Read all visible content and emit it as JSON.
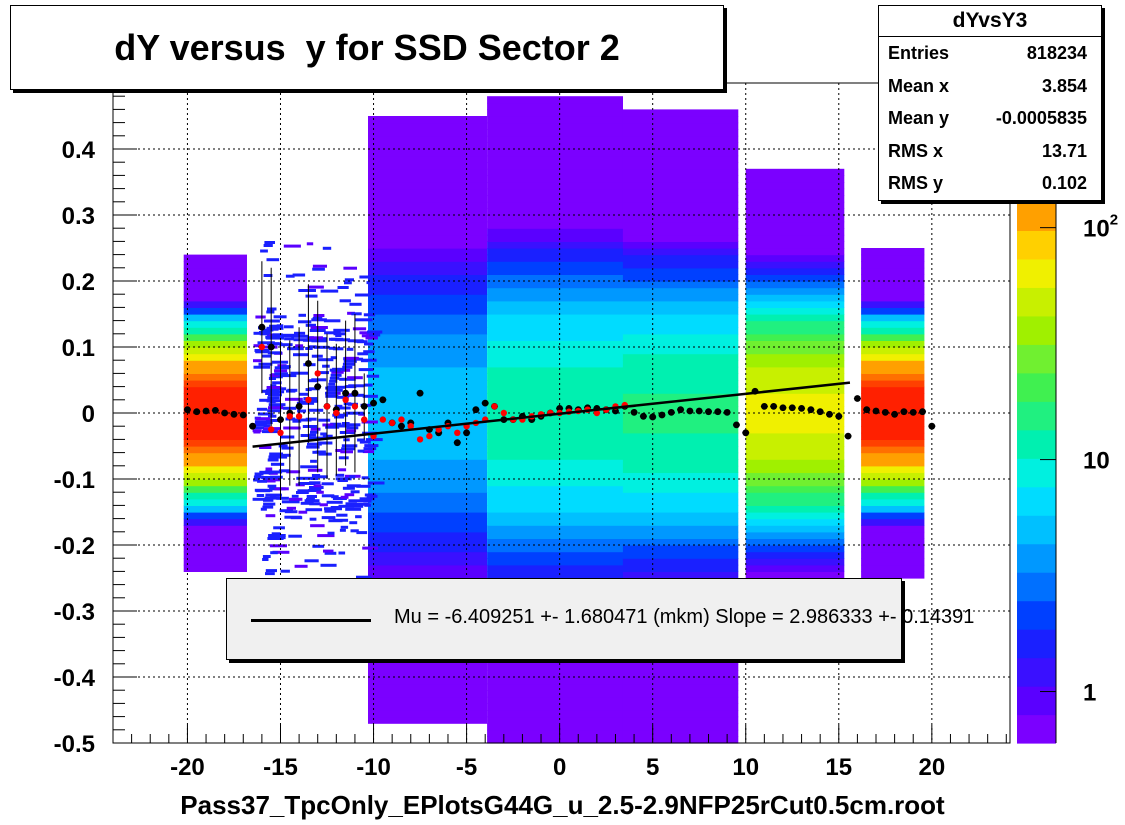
{
  "title": "dY versus  y for SSD Sector 2",
  "stats": {
    "name": "dYvsY3",
    "rows": [
      {
        "label": "Entries",
        "value": "818234"
      },
      {
        "label": "Mean x",
        "value": "3.854"
      },
      {
        "label": "Mean y",
        "value": "-0.0005835"
      },
      {
        "label": "RMS x",
        "value": "13.71"
      },
      {
        "label": "RMS y",
        "value": "0.102"
      }
    ]
  },
  "legend": {
    "text": "Mu = -6.409251 +- 1.680471 (mkm) Slope = 2.986333 +- 0.14391"
  },
  "colors": {
    "fit_line": "#000000",
    "mean_points": "#000000",
    "fit_points": "#ff0000",
    "frame": "#000000"
  },
  "chart_data": {
    "type": "heatmap",
    "title": "dY versus  y for SSD Sector 2",
    "xlabel": "Pass37_TpcOnly_EPlotsG44G_u_2.5-2.9NFP25rCut0.5cm.root",
    "ylabel": "",
    "xlim": [
      -24,
      24.2
    ],
    "ylim": [
      -0.5,
      0.5
    ],
    "x_ticks": [
      -20,
      -15,
      -10,
      -5,
      0,
      5,
      10,
      15,
      20
    ],
    "x_tick_labels": [
      "-20",
      "-15",
      "-10",
      "-5",
      "0",
      "5",
      "10",
      "15",
      "20"
    ],
    "y_ticks": [
      -0.5,
      -0.4,
      -0.3,
      -0.2,
      -0.1,
      0,
      0.1,
      0.2,
      0.3,
      0.4
    ],
    "y_tick_labels": [
      "-0.5",
      "-0.4",
      "-0.3",
      "-0.2",
      "-0.1",
      "0",
      "0.1",
      "0.2",
      "0.3",
      "0.4"
    ],
    "grid": true,
    "z_scale": "log",
    "z_range": [
      0.6,
      400
    ],
    "colorbar_ticks": [
      {
        "value": 1,
        "label": "1"
      },
      {
        "value": 10,
        "label": "10"
      },
      {
        "value": 100,
        "label": "10",
        "sup": "2"
      }
    ],
    "density_bands": [
      {
        "x0": -20.2,
        "x1": -16.8,
        "y0": -0.24,
        "y1": 0.24,
        "peak": 300,
        "sigma": 0.05
      },
      {
        "x0": -10.3,
        "x1": -3.9,
        "y0": -0.47,
        "y1": 0.45,
        "peak": 5,
        "sigma": 0.13
      },
      {
        "x0": -3.9,
        "x1": 3.4,
        "y0": -0.5,
        "y1": 0.48,
        "peak": 12,
        "sigma": 0.12
      },
      {
        "x0": 3.4,
        "x1": 9.6,
        "y0": -0.5,
        "y1": 0.46,
        "peak": 14,
        "sigma": 0.11
      },
      {
        "x0": 10.0,
        "x1": 15.3,
        "y0": -0.36,
        "y1": 0.37,
        "peak": 60,
        "sigma": 0.08
      },
      {
        "x0": 16.2,
        "x1": 19.6,
        "y0": -0.25,
        "y1": 0.25,
        "peak": 300,
        "sigma": 0.05
      }
    ],
    "sparse_region": {
      "x0": -16.5,
      "x1": -10.3,
      "y0": -0.43,
      "y1": 0.37
    },
    "series": [
      {
        "kind": "profile_mean",
        "x": [
          -20.0,
          -19.5,
          -19.0,
          -18.5,
          -18.0,
          -17.5,
          -17.0,
          -16.5,
          -16.0,
          -15.5,
          -15.0,
          -14.5,
          -14.0,
          -13.5,
          -13.0,
          -12.5,
          -12.0,
          -11.5,
          -11.0,
          -10.5,
          -10.0,
          -9.5,
          -9.0,
          -8.5,
          -8.0,
          -7.5,
          -7.0,
          -6.5,
          -6.0,
          -5.5,
          -5.0,
          -4.5,
          -4.0,
          -3.5,
          -3.0,
          -2.5,
          -2.0,
          -1.5,
          -1.0,
          -0.5,
          0.0,
          0.5,
          1.0,
          1.5,
          2.0,
          2.5,
          3.0,
          3.5,
          4.0,
          4.5,
          5.0,
          5.5,
          6.0,
          6.5,
          7.0,
          7.5,
          8.0,
          8.5,
          9.0,
          9.5,
          10.0,
          10.5,
          11.0,
          11.5,
          12.0,
          12.5,
          13.0,
          13.5,
          14.0,
          14.5,
          15.0,
          15.5,
          16.0,
          16.5,
          17.0,
          17.5,
          18.0,
          18.5,
          19.0,
          19.5,
          20.0
        ],
        "y": [
          0.005,
          0.002,
          0.003,
          0.004,
          0.0,
          -0.002,
          -0.003,
          -0.02,
          0.13,
          0.1,
          -0.01,
          0.0,
          0.01,
          0.075,
          0.04,
          0.01,
          0.005,
          0.03,
          0.03,
          0.01,
          0.015,
          0.02,
          -0.015,
          -0.02,
          -0.015,
          0.03,
          -0.025,
          -0.03,
          -0.015,
          -0.045,
          -0.03,
          0.005,
          0.015,
          0.01,
          -0.01,
          -0.01,
          -0.005,
          -0.01,
          -0.005,
          0.0,
          0.007,
          0.007,
          0.005,
          0.008,
          0.007,
          0.005,
          0.003,
          0.01,
          0.001,
          -0.005,
          -0.006,
          -0.003,
          0.001,
          0.005,
          0.003,
          0.003,
          0.002,
          0.002,
          0.001,
          -0.018,
          -0.03,
          0.033,
          0.01,
          0.01,
          0.008,
          0.008,
          0.007,
          0.005,
          0.002,
          -0.002,
          -0.005,
          -0.035,
          0.022,
          0.005,
          0.003,
          0.001,
          -0.002,
          0.002,
          0.001,
          0.002,
          -0.02
        ],
        "err": [
          0,
          0,
          0,
          0,
          0,
          0,
          0,
          0,
          0.1,
          0.12,
          0.12,
          0.11,
          0.12,
          0.12,
          0.13,
          0.11,
          0.1,
          0.11,
          0.12,
          0.05,
          0.0,
          0,
          0,
          0,
          0,
          0,
          0,
          0,
          0,
          0,
          0,
          0,
          0,
          0,
          0,
          0,
          0,
          0,
          0,
          0,
          0,
          0,
          0,
          0,
          0,
          0,
          0,
          0,
          0,
          0,
          0,
          0,
          0,
          0,
          0,
          0,
          0,
          0,
          0,
          0,
          0,
          0,
          0,
          0,
          0,
          0,
          0,
          0,
          0,
          0,
          0,
          0,
          0,
          0,
          0,
          0,
          0,
          0,
          0,
          0,
          0
        ]
      },
      {
        "kind": "fit_mean",
        "x": [
          -16.0,
          -15.5,
          -15.0,
          -14.5,
          -14.0,
          -13.5,
          -13.0,
          -12.5,
          -12.0,
          -11.5,
          -11.0,
          -10.5,
          -10.0,
          -9.5,
          -9.0,
          -8.5,
          -8.0,
          -7.5,
          -7.0,
          -6.5,
          -6.0,
          -5.5,
          -5.0,
          -4.5,
          -4.0,
          -3.5,
          -3.0,
          -2.5,
          -2.0,
          -1.5,
          -1.0,
          -0.5,
          0.0,
          0.5,
          1.0,
          1.5,
          2.0,
          2.5,
          3.0,
          3.5
        ],
        "y": [
          0.1,
          -0.025,
          -0.03,
          -0.005,
          -0.005,
          0.02,
          0.06,
          0.01,
          0.0,
          0.02,
          0.01,
          -0.01,
          -0.035,
          -0.01,
          -0.015,
          -0.01,
          -0.02,
          -0.04,
          -0.035,
          -0.025,
          -0.02,
          -0.03,
          -0.02,
          -0.015,
          -0.01,
          0.01,
          0.0,
          -0.01,
          -0.01,
          -0.005,
          -0.002,
          0.0,
          0.0,
          0.002,
          0.003,
          0.005,
          0.0,
          0.005,
          0.01,
          0.012
        ]
      },
      {
        "kind": "fit_line",
        "x": [
          -16.5,
          15.6
        ],
        "y": [
          -0.051,
          0.046
        ]
      }
    ]
  }
}
